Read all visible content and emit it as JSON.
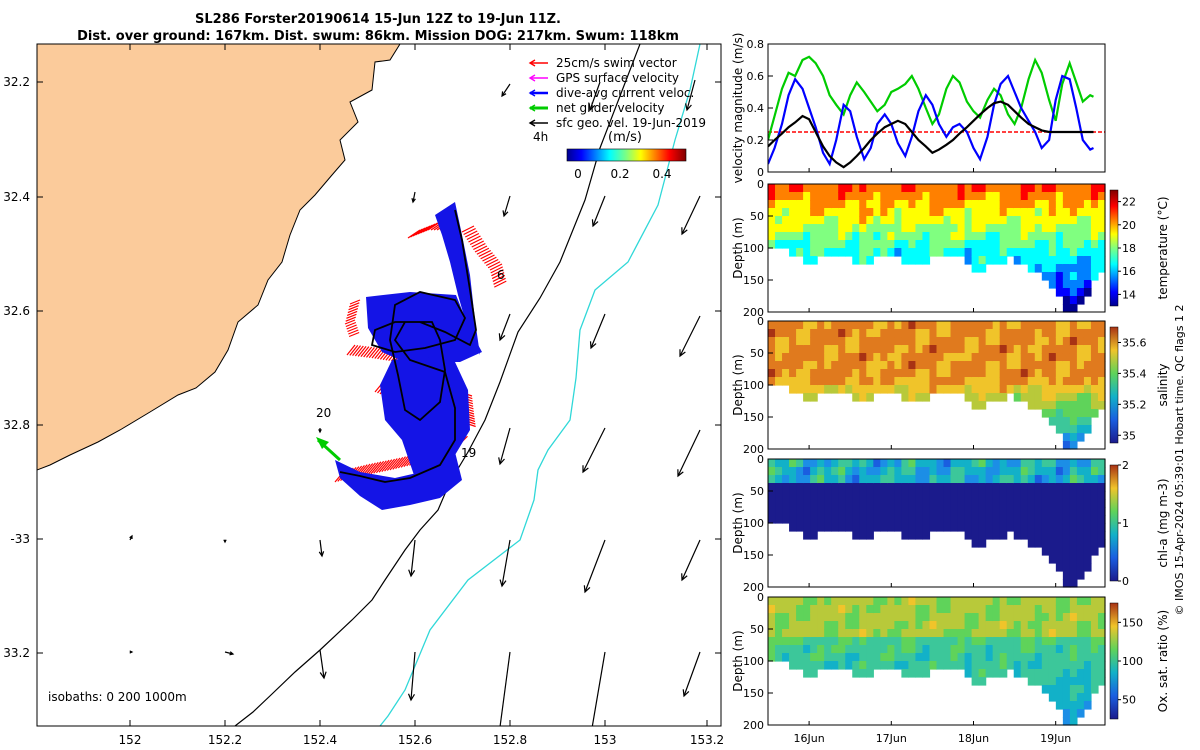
{
  "figure": {
    "title_line1": "SL286 Forster20190614 15-Jun 12Z to 19-Jun 11Z.",
    "title_line2": "Dist. over ground: 167km. Dist. swum: 86km. Mission DOG: 217km. Swum: 118km",
    "footer_note": "© IMOS 15-Apr-2024 05:39:01 Hobart time. QC flags 1  2"
  },
  "colors": {
    "land": "#fbcb9b",
    "swim_vector": "#ff0000",
    "gps_surface": "#ff00ff",
    "dive_avg": "#0000ff",
    "net_glider": "#00cc00",
    "sfc_geo": "#000000",
    "iso_200": "#000000",
    "iso_1000": "#30d8d8",
    "threshold": "#ff0000"
  },
  "map": {
    "lon_ticks": [
      "152",
      "152.2",
      "152.4",
      "152.6",
      "152.8",
      "153",
      "153.2"
    ],
    "lat_ticks": [
      "32.2",
      "32.4",
      "32.6",
      "32.8",
      "-33",
      "33.2"
    ],
    "legend": [
      {
        "label": "25cm/s swim vector",
        "color_key": "swim_vector"
      },
      {
        "label": "GPS surface velocity",
        "color_key": "gps_surface"
      },
      {
        "label": "dive-avg current veloc.",
        "color_key": "dive_avg"
      },
      {
        "label": "net glider velocity",
        "color_key": "net_glider"
      },
      {
        "label": "sfc geo. vel. 19-Jun-2019",
        "color_key": "sfc_geo"
      }
    ],
    "colorbar": {
      "time_label": "4h",
      "unit_label": "(m/s)",
      "ticks": [
        "0",
        "0.2",
        "0.4"
      ]
    },
    "day_labels": [
      "6",
      "20",
      "19"
    ],
    "isobath_label": "isobaths: 0   200  1000m"
  },
  "chart_data": [
    {
      "type": "line",
      "title": "",
      "ylabel": "velocity magnitude (m/s)",
      "ylim": [
        0,
        0.8
      ],
      "y_ticks": [
        "0",
        "0.2",
        "0.4",
        "0.6",
        "0.8"
      ],
      "x_ticks": [
        "16Jun",
        "17Jun",
        "18Jun",
        "19Jun"
      ],
      "x": [
        15.5,
        15.58,
        15.67,
        15.75,
        15.83,
        15.92,
        16.0,
        16.08,
        16.17,
        16.25,
        16.33,
        16.42,
        16.5,
        16.58,
        16.67,
        16.75,
        16.83,
        16.92,
        17.0,
        17.08,
        17.17,
        17.25,
        17.33,
        17.42,
        17.5,
        17.58,
        17.67,
        17.75,
        17.83,
        17.92,
        18.0,
        18.08,
        18.17,
        18.25,
        18.33,
        18.42,
        18.5,
        18.58,
        18.67,
        18.75,
        18.83,
        18.92,
        19.0,
        19.08,
        19.17,
        19.25,
        19.33,
        19.42,
        19.46
      ],
      "series": [
        {
          "color_key": "net_glider",
          "values": [
            0.2,
            0.35,
            0.52,
            0.62,
            0.6,
            0.7,
            0.72,
            0.68,
            0.6,
            0.48,
            0.42,
            0.36,
            0.48,
            0.56,
            0.5,
            0.44,
            0.38,
            0.42,
            0.5,
            0.52,
            0.55,
            0.6,
            0.52,
            0.4,
            0.3,
            0.36,
            0.52,
            0.6,
            0.56,
            0.44,
            0.38,
            0.34,
            0.45,
            0.52,
            0.48,
            0.36,
            0.3,
            0.4,
            0.58,
            0.7,
            0.62,
            0.45,
            0.32,
            0.55,
            0.68,
            0.56,
            0.44,
            0.48,
            0.47
          ]
        },
        {
          "color_key": "dive_avg",
          "values": [
            0.05,
            0.15,
            0.3,
            0.48,
            0.58,
            0.52,
            0.4,
            0.28,
            0.12,
            0.05,
            0.2,
            0.42,
            0.38,
            0.22,
            0.08,
            0.15,
            0.3,
            0.36,
            0.3,
            0.18,
            0.1,
            0.22,
            0.38,
            0.48,
            0.42,
            0.3,
            0.22,
            0.28,
            0.3,
            0.25,
            0.15,
            0.08,
            0.22,
            0.42,
            0.55,
            0.6,
            0.5,
            0.4,
            0.32,
            0.25,
            0.15,
            0.2,
            0.45,
            0.6,
            0.58,
            0.4,
            0.2,
            0.14,
            0.15
          ]
        },
        {
          "color_key": "sfc_geo",
          "values": [
            0.16,
            0.2,
            0.24,
            0.28,
            0.31,
            0.35,
            0.33,
            0.25,
            0.16,
            0.1,
            0.06,
            0.03,
            0.06,
            0.1,
            0.15,
            0.2,
            0.24,
            0.28,
            0.3,
            0.32,
            0.3,
            0.25,
            0.2,
            0.16,
            0.12,
            0.14,
            0.17,
            0.2,
            0.24,
            0.28,
            0.32,
            0.36,
            0.4,
            0.43,
            0.44,
            0.42,
            0.38,
            0.34,
            0.3,
            0.28,
            0.26,
            0.25,
            0.25,
            0.25,
            0.25,
            0.25,
            0.25,
            0.25,
            0.25
          ]
        }
      ],
      "threshold": 0.25
    },
    {
      "type": "heatmap",
      "ylabel": "Depth (m)",
      "clabel": "temperature (°C)",
      "ylim": [
        200,
        0
      ],
      "y_ticks": [
        "0",
        "50",
        "100",
        "150",
        "200"
      ],
      "c_ticks": [
        "14",
        "16",
        "18",
        "20",
        "22"
      ],
      "crange": [
        13,
        23
      ]
    },
    {
      "type": "heatmap",
      "ylabel": "Depth (m)",
      "clabel": "salinity",
      "ylim": [
        200,
        0
      ],
      "y_ticks": [
        "0",
        "50",
        "100",
        "150",
        "200"
      ],
      "c_ticks": [
        "35",
        "35.2",
        "35.4",
        "35.6"
      ],
      "crange": [
        34.95,
        35.7
      ]
    },
    {
      "type": "heatmap",
      "ylabel": "Depth (m)",
      "clabel": "chl-a (mg m-3)",
      "ylim": [
        200,
        0
      ],
      "y_ticks": [
        "0",
        "50",
        "100",
        "150",
        "200"
      ],
      "c_ticks": [
        "0",
        "1",
        "2"
      ],
      "crange": [
        0,
        2
      ]
    },
    {
      "type": "heatmap",
      "ylabel": "Depth (m)",
      "clabel": "Ox. sat. ratio (%)",
      "ylim": [
        200,
        0
      ],
      "y_ticks": [
        "0",
        "50",
        "100",
        "150",
        "200"
      ],
      "c_ticks": [
        "50",
        "100",
        "150"
      ],
      "crange": [
        25,
        175
      ]
    }
  ]
}
